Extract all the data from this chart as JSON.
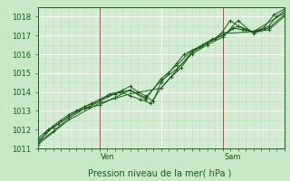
{
  "title": "",
  "xlabel": "Pression niveau de la mer( hPa )",
  "ylabel": "",
  "bg_color": "#c8e8c8",
  "plot_bg_color": "#d4ecd4",
  "grid_color": "#b8d8b8",
  "grid_color_minor": "#c8e0c8",
  "line_color": "#1a5c1a",
  "marker_color": "#1a5c1a",
  "vline_color": "#cc4444",
  "ylim": [
    1011,
    1018.5
  ],
  "xlim": [
    0,
    96
  ],
  "yticks": [
    1011,
    1012,
    1013,
    1014,
    1015,
    1016,
    1017,
    1018
  ],
  "ven_x": 24,
  "sam_x": 72,
  "xlabel_fontsize": 7,
  "tick_fontsize": 6,
  "day_label_fontsize": 6,
  "series": [
    {
      "x": [
        0,
        3,
        6,
        9,
        12,
        15,
        18,
        21,
        24,
        27,
        30,
        33,
        36,
        39,
        42,
        45,
        48,
        51,
        54,
        57,
        60,
        63,
        66,
        69,
        72,
        75,
        78,
        81,
        84,
        87,
        90,
        93,
        96
      ],
      "y": [
        1011.2,
        1011.8,
        1012.2,
        1012.5,
        1012.8,
        1013.0,
        1013.2,
        1013.4,
        1013.6,
        1013.8,
        1013.9,
        1014.1,
        1014.3,
        1014.0,
        1013.8,
        1013.5,
        1014.5,
        1015.0,
        1015.5,
        1016.0,
        1016.2,
        1016.4,
        1016.6,
        1016.8,
        1017.2,
        1017.8,
        1017.5,
        1017.3,
        1017.2,
        1017.3,
        1017.5,
        1018.0,
        1018.3
      ],
      "marker": "+"
    },
    {
      "x": [
        0,
        4,
        8,
        12,
        16,
        20,
        24,
        28,
        32,
        36,
        40,
        44,
        48,
        52,
        56,
        60,
        64,
        68,
        72,
        76,
        80,
        84,
        88,
        92,
        96
      ],
      "y": [
        1011.5,
        1012.0,
        1012.3,
        1012.7,
        1013.0,
        1013.2,
        1013.5,
        1013.9,
        1014.0,
        1013.8,
        1013.6,
        1013.4,
        1014.2,
        1014.8,
        1015.3,
        1016.1,
        1016.5,
        1016.8,
        1017.0,
        1017.4,
        1017.3,
        1017.2,
        1017.4,
        1018.1,
        1018.4
      ],
      "marker": "+"
    },
    {
      "x": [
        0,
        6,
        12,
        18,
        24,
        30,
        36,
        42,
        48,
        54,
        60,
        66,
        72,
        78,
        84,
        90,
        96
      ],
      "y": [
        1011.3,
        1011.9,
        1012.6,
        1013.1,
        1013.3,
        1013.7,
        1014.1,
        1013.7,
        1014.6,
        1015.2,
        1016.0,
        1016.5,
        1016.9,
        1017.8,
        1017.1,
        1017.4,
        1018.1
      ],
      "marker": "+"
    },
    {
      "x": [
        0,
        12,
        24,
        36,
        48,
        60,
        72,
        84,
        96
      ],
      "y": [
        1011.2,
        1012.5,
        1013.4,
        1013.9,
        1014.2,
        1016.1,
        1017.1,
        1017.2,
        1018.2
      ],
      "marker": null
    },
    {
      "x": [
        0,
        6,
        12,
        18,
        24,
        30,
        36,
        42,
        48,
        54,
        60,
        66,
        72,
        78,
        84,
        90,
        96
      ],
      "y": [
        1011.4,
        1012.1,
        1012.7,
        1013.2,
        1013.5,
        1013.9,
        1014.1,
        1013.6,
        1014.7,
        1015.4,
        1016.2,
        1016.6,
        1017.0,
        1017.5,
        1017.2,
        1017.3,
        1018.0
      ],
      "marker": "+"
    }
  ]
}
